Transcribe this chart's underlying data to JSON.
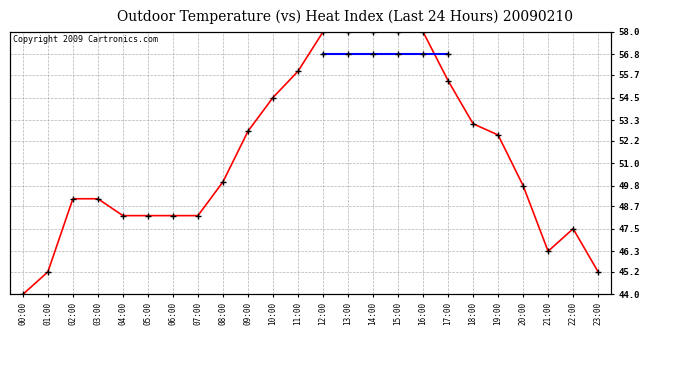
{
  "title": "Outdoor Temperature (vs) Heat Index (Last 24 Hours) 20090210",
  "copyright_text": "Copyright 2009 Cartronics.com",
  "x_labels": [
    "00:00",
    "01:00",
    "02:00",
    "03:00",
    "04:00",
    "05:00",
    "06:00",
    "07:00",
    "08:00",
    "09:00",
    "10:00",
    "11:00",
    "12:00",
    "13:00",
    "14:00",
    "15:00",
    "16:00",
    "17:00",
    "18:00",
    "19:00",
    "20:00",
    "21:00",
    "22:00",
    "23:00"
  ],
  "temp_values": [
    44.0,
    45.2,
    49.1,
    49.1,
    48.2,
    48.2,
    48.2,
    48.2,
    50.0,
    52.7,
    54.5,
    55.9,
    58.0,
    58.0,
    58.0,
    58.0,
    58.0,
    55.4,
    53.1,
    52.5,
    49.8,
    46.3,
    47.5,
    45.2
  ],
  "heat_values": [
    null,
    null,
    null,
    null,
    null,
    null,
    null,
    null,
    null,
    null,
    null,
    null,
    56.8,
    56.8,
    56.8,
    56.8,
    56.8,
    56.8,
    null,
    null,
    null,
    null,
    null,
    null
  ],
  "temp_color": "#FF0000",
  "heat_color": "#0000FF",
  "background_color": "#FFFFFF",
  "grid_color": "#AAAAAA",
  "ylim": [
    44.0,
    58.0
  ],
  "yticks": [
    44.0,
    45.2,
    46.3,
    47.5,
    48.7,
    49.8,
    51.0,
    52.2,
    53.3,
    54.5,
    55.7,
    56.8,
    58.0
  ],
  "title_fontsize": 10,
  "copyright_fontsize": 6
}
